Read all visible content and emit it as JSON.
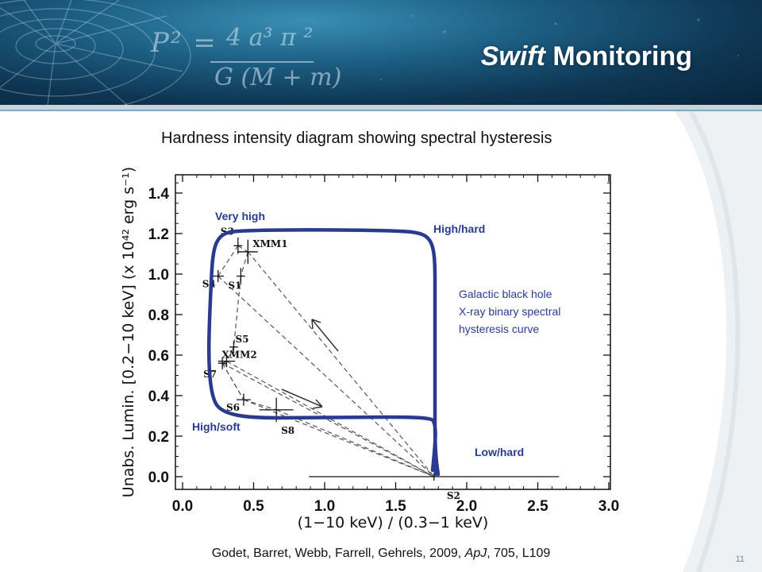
{
  "header": {
    "title_italic": "Swift",
    "title_rest": " Monitoring",
    "formula_lhs": "P² =",
    "formula_numerator": "4 a³ π ²",
    "formula_denominator": "G (M + m)"
  },
  "chart_title": "Hardness intensity diagram showing spectral hysteresis",
  "citation_prefix": "Godet, Barret, Webb, Farrell, Gehrels, 2009, ",
  "citation_journal": "ApJ",
  "citation_suffix": ", 705, L109",
  "page_number": "11",
  "chart_data": {
    "type": "scatter",
    "xlabel": "(1−10 keV) / (0.3−1 keV)",
    "ylabel": "Unabs. Lumin. [0.2−10 keV] (x 10⁴² erg s⁻¹)",
    "xlim": [
      0.0,
      3.0
    ],
    "ylim": [
      -0.05,
      1.5
    ],
    "x_ticks": [
      "0.0",
      "0.5",
      "1.0",
      "1.5",
      "2.0",
      "2.5",
      "3.0"
    ],
    "y_ticks": [
      "0.0",
      "0.2",
      "0.4",
      "0.6",
      "0.8",
      "1.0",
      "1.2",
      "1.4"
    ],
    "points": [
      {
        "label": "XMM1",
        "x": 0.46,
        "y": 1.11,
        "xerr": 0.07,
        "yerr": 0.06
      },
      {
        "label": "S3",
        "x": 0.39,
        "y": 1.14,
        "xerr": 0.03,
        "yerr": 0.04
      },
      {
        "label": "S4",
        "x": 0.25,
        "y": 0.99,
        "xerr": 0.04,
        "yerr": 0.03
      },
      {
        "label": "S1",
        "x": 0.41,
        "y": 0.99,
        "xerr": 0.03,
        "yerr": 0.04
      },
      {
        "label": "S5",
        "x": 0.36,
        "y": 0.64,
        "xerr": 0.03,
        "yerr": 0.03
      },
      {
        "label": "XMM2",
        "x": 0.31,
        "y": 0.57,
        "xerr": 0.06,
        "yerr": 0.03
      },
      {
        "label": "S7",
        "x": 0.28,
        "y": 0.56,
        "xerr": 0.03,
        "yerr": 0.03
      },
      {
        "label": "S6",
        "x": 0.43,
        "y": 0.38,
        "xerr": 0.05,
        "yerr": 0.03
      },
      {
        "label": "S8",
        "x": 0.66,
        "y": 0.33,
        "xerr": 0.12,
        "yerr": 0.06
      },
      {
        "label": "S2",
        "x": 1.77,
        "y": 0.0,
        "xerr": 0.88,
        "yerr": 0.02
      }
    ],
    "hysteresis_labels": [
      "Very high",
      "High/hard",
      "High/soft",
      "Low/hard"
    ],
    "annotation": [
      "Galactic black hole",
      "X-ray binary spectral",
      "hysteresis curve"
    ],
    "colors": {
      "hysteresis_curve": "#2a3b8f",
      "data": "#111111"
    }
  }
}
